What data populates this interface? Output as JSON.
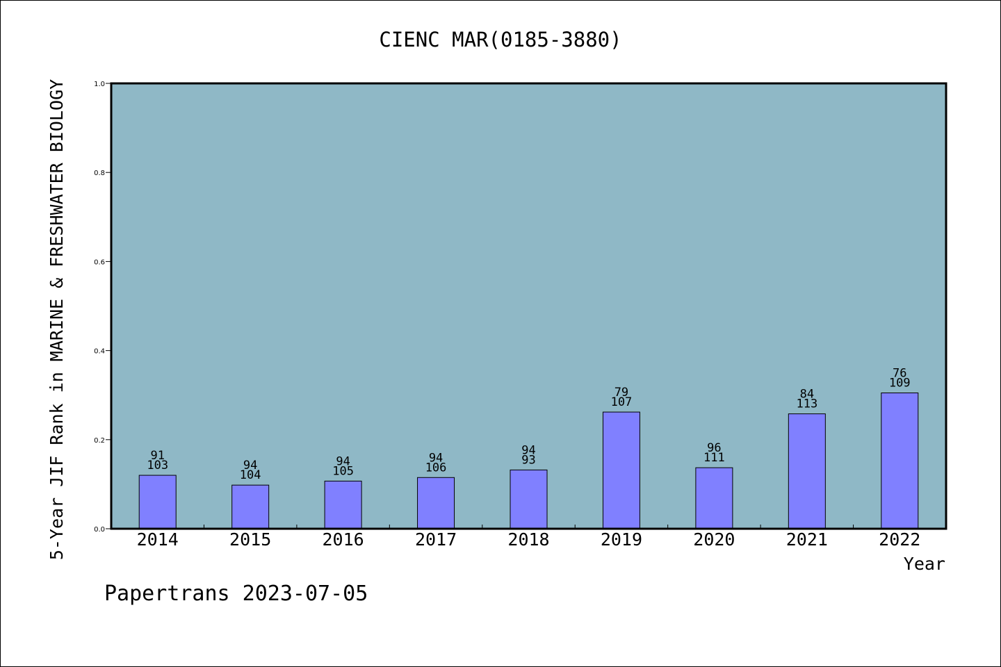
{
  "chart_data": {
    "type": "bar",
    "title": "CIENC MAR(0185-3880)",
    "xlabel": "Year",
    "ylabel": "5-Year JIF Rank in MARINE & FRESHWATER BIOLOGY",
    "ylim": [
      0,
      1.0
    ],
    "yticks": [
      "0.0",
      "0.2",
      "0.4",
      "0.6",
      "0.8",
      "1.0"
    ],
    "categories": [
      "2014",
      "2015",
      "2016",
      "2017",
      "2018",
      "2019",
      "2020",
      "2021",
      "2022"
    ],
    "values": [
      0.12,
      0.098,
      0.107,
      0.115,
      0.132,
      0.262,
      0.137,
      0.258,
      0.305
    ],
    "rank": [
      "91",
      "94",
      "94",
      "94",
      "94",
      "79",
      "96",
      "84",
      "76"
    ],
    "total": [
      "103",
      "104",
      "105",
      "106",
      "93",
      "107",
      "111",
      "113",
      "109"
    ],
    "grid": false,
    "legend": "none",
    "colors": {
      "plot_bg": "#8fb8c6",
      "bar": "#8080ff",
      "axis": "#000000"
    }
  },
  "footer": "Papertrans 2023-07-05"
}
